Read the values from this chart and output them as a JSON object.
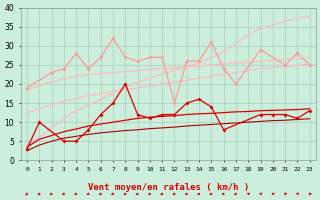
{
  "bg_color": "#cceedd",
  "grid_color": "#aaccbb",
  "xlabel": "Vent moyen/en rafales ( km/h )",
  "ylim": [
    0,
    40
  ],
  "yticks": [
    0,
    5,
    10,
    15,
    20,
    25,
    30,
    35,
    40
  ],
  "xticks": [
    0,
    1,
    2,
    3,
    4,
    5,
    6,
    7,
    8,
    9,
    10,
    11,
    12,
    13,
    14,
    15,
    16,
    17,
    18,
    19,
    20,
    21,
    22,
    23
  ],
  "pink_jagged": [
    19,
    null,
    23,
    24,
    28,
    24,
    27,
    32,
    27,
    26,
    27,
    27,
    15,
    26,
    26,
    31,
    24,
    20,
    null,
    29,
    null,
    25,
    28,
    25
  ],
  "red_jagged": [
    3,
    10,
    null,
    5,
    5,
    8,
    12,
    15,
    20,
    12,
    11,
    12,
    12,
    15,
    16,
    14,
    8,
    null,
    null,
    12,
    12,
    12,
    11,
    13
  ],
  "pink_trend_rising": [
    4.0,
    6.0,
    8.5,
    11.0,
    13.0,
    14.5,
    16.0,
    17.5,
    19.0,
    20.5,
    21.5,
    22.5,
    23.5,
    24.5,
    25.5,
    27.0,
    28.5,
    30.5,
    33.0,
    34.5,
    35.5,
    36.5,
    37.2,
    37.8
  ],
  "pink_trend_flat_upper": [
    18.5,
    19.5,
    20.5,
    21.5,
    22.0,
    22.5,
    22.8,
    23.0,
    23.2,
    23.5,
    23.8,
    24.0,
    24.2,
    24.5,
    24.7,
    25.0,
    25.2,
    25.5,
    25.7,
    26.0,
    26.2,
    26.4,
    26.6,
    26.8
  ],
  "pink_trend_flat_lower": [
    12.5,
    13.5,
    14.5,
    15.5,
    16.2,
    17.0,
    17.5,
    18.0,
    18.5,
    19.0,
    19.5,
    20.0,
    20.5,
    21.0,
    21.5,
    22.0,
    22.5,
    23.0,
    23.5,
    24.0,
    24.3,
    24.6,
    24.9,
    25.2
  ],
  "red_trend_upper": [
    3.5,
    5.5,
    6.5,
    7.5,
    8.2,
    9.0,
    9.5,
    10.0,
    10.5,
    11.0,
    11.3,
    11.5,
    11.7,
    12.0,
    12.2,
    12.3,
    12.5,
    12.7,
    12.8,
    13.0,
    13.1,
    13.2,
    13.3,
    13.5
  ],
  "red_trend_lower": [
    2.5,
    4.0,
    5.0,
    5.8,
    6.3,
    6.8,
    7.2,
    7.5,
    7.8,
    8.0,
    8.3,
    8.5,
    8.7,
    9.0,
    9.2,
    9.4,
    9.6,
    9.8,
    10.0,
    10.2,
    10.4,
    10.5,
    10.7,
    10.9
  ],
  "pink_color": "#ff9999",
  "light_pink": "#ffbbbb",
  "red_color": "#dd0000",
  "dark_red": "#aa0000"
}
